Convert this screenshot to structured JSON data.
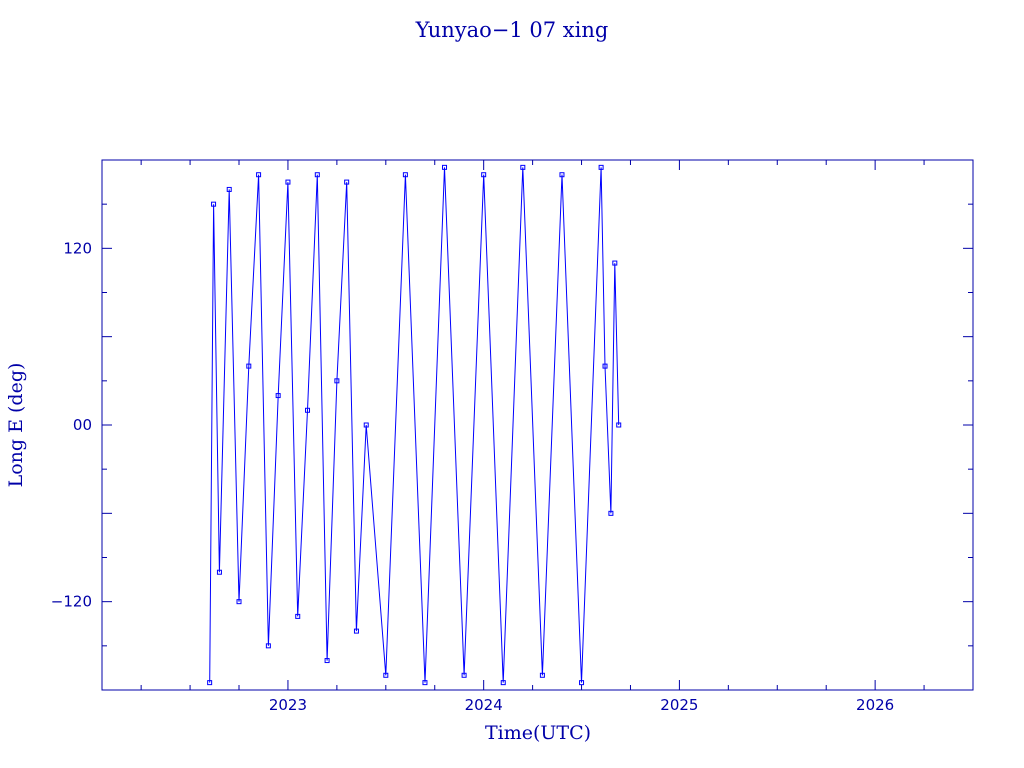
{
  "chart_data": {
    "type": "line",
    "title": "Yunyao−1 07 xing",
    "xlabel": "Time(UTC)",
    "ylabel": "Long E (deg)",
    "xlim": [
      2022.05,
      2026.5
    ],
    "ylim": [
      -180,
      180
    ],
    "x_ticks": [
      {
        "value": 2023,
        "label": "2023"
      },
      {
        "value": 2024,
        "label": "2024"
      },
      {
        "value": 2025,
        "label": "2025"
      },
      {
        "value": 2026,
        "label": "2026"
      }
    ],
    "y_ticks": [
      {
        "value": 120,
        "label": "120"
      },
      {
        "value": 0,
        "label": "00"
      },
      {
        "value": -120,
        "label": "−120"
      }
    ],
    "grid": false,
    "legend": "none",
    "series_color": "#0000ff",
    "axis_color": "#0000a8",
    "series": [
      {
        "x": [
          2022.6,
          2022.62,
          2022.65,
          2022.7,
          2022.75,
          2022.8,
          2022.85,
          2022.9,
          2022.95,
          2023.0,
          2023.05,
          2023.1,
          2023.15,
          2023.2,
          2023.25,
          2023.3,
          2023.35,
          2023.4,
          2023.5,
          2023.6,
          2023.7,
          2023.8,
          2023.9,
          2024.0,
          2024.1,
          2024.2,
          2024.3,
          2024.4,
          2024.5,
          2024.6,
          2024.62,
          2024.65,
          2024.67,
          2024.69
        ],
        "y": [
          -175,
          150,
          -100,
          160,
          -120,
          40,
          170,
          -150,
          20,
          165,
          -130,
          10,
          170,
          -160,
          30,
          165,
          -140,
          0,
          -170,
          170,
          -175,
          175,
          -170,
          170,
          -175,
          175,
          -170,
          170,
          -175,
          175,
          40,
          -60,
          110,
          0
        ]
      }
    ]
  }
}
